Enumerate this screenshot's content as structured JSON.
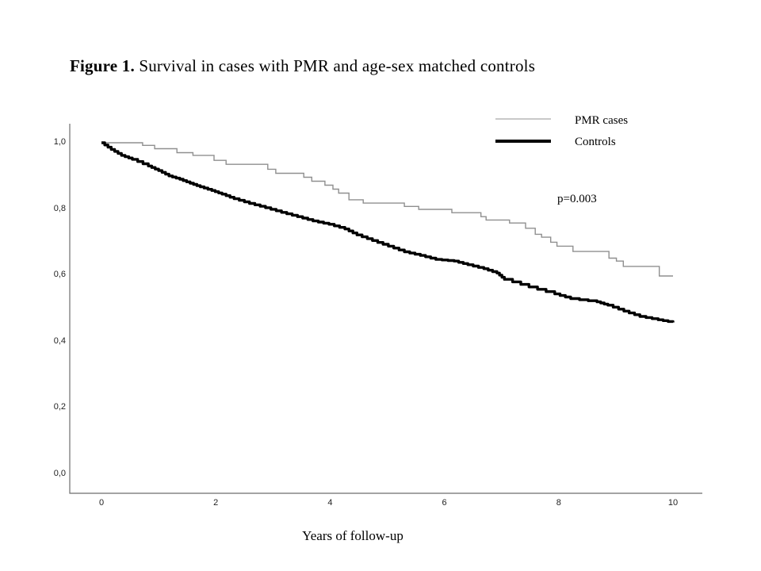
{
  "page": {
    "background": "#ffffff"
  },
  "title": {
    "label": "Figure 1.",
    "text": " Survival in cases with PMR and age-sex matched controls"
  },
  "legend": {
    "position": "top-right",
    "items": [
      {
        "label": "PMR cases",
        "swatch_color": "#c9c9c9",
        "swatch_thickness": 2
      },
      {
        "label": "Controls",
        "swatch_color": "#000000",
        "swatch_thickness": 4
      }
    ]
  },
  "annotation": {
    "p_value": "p=0.003"
  },
  "chart_data": {
    "type": "line",
    "subtype": "kaplan-meier-step-survival",
    "title": "Figure 1. Survival in cases with PMR and age-sex matched controls",
    "xlabel": "Years of follow-up",
    "ylabel": "",
    "xlim": [
      0,
      10
    ],
    "ylim": [
      0.0,
      1.0
    ],
    "grid": false,
    "legend_position": "top-right",
    "p_value": "p=0.003",
    "x_ticks": [
      {
        "value": 0,
        "label": "0"
      },
      {
        "value": 2,
        "label": "2"
      },
      {
        "value": 4,
        "label": "4"
      },
      {
        "value": 6,
        "label": "6"
      },
      {
        "value": 8,
        "label": "8"
      },
      {
        "value": 10,
        "label": "10"
      }
    ],
    "y_ticks": [
      {
        "value": 0.0,
        "label": "0,0"
      },
      {
        "value": 0.2,
        "label": "0,2"
      },
      {
        "value": 0.4,
        "label": "0,4"
      },
      {
        "value": 0.6,
        "label": "0,6"
      },
      {
        "value": 0.8,
        "label": "0,8"
      },
      {
        "value": 1.0,
        "label": "1,0"
      }
    ],
    "series": [
      {
        "name": "PMR cases",
        "color": "#8f8f8f",
        "stroke_width": 1.4,
        "substeps": 1,
        "x": [
          0,
          0.72,
          0.93,
          1.32,
          1.6,
          1.97,
          2.18,
          2.91,
          3.05,
          3.54,
          3.68,
          3.91,
          4.05,
          4.15,
          4.33,
          4.58,
          5.3,
          5.55,
          6.13,
          6.64,
          6.73,
          7.14,
          7.42,
          7.59,
          7.7,
          7.86,
          7.97,
          8.25,
          8.88,
          9.01,
          9.13,
          9.76,
          10.0
        ],
        "y": [
          1.0,
          0.992,
          0.982,
          0.97,
          0.962,
          0.947,
          0.935,
          0.92,
          0.908,
          0.896,
          0.884,
          0.872,
          0.86,
          0.848,
          0.828,
          0.818,
          0.808,
          0.799,
          0.789,
          0.777,
          0.767,
          0.758,
          0.742,
          0.724,
          0.715,
          0.7,
          0.688,
          0.672,
          0.652,
          0.643,
          0.627,
          0.598,
          0.598
        ]
      },
      {
        "name": "Controls",
        "color": "#000000",
        "stroke_width": 3.4,
        "substeps": 3,
        "x": [
          0,
          0.17,
          0.35,
          0.54,
          0.82,
          1.0,
          1.18,
          1.37,
          1.55,
          1.73,
          1.93,
          2.11,
          2.32,
          2.59,
          2.87,
          3.15,
          3.43,
          3.7,
          3.98,
          4.26,
          4.47,
          4.74,
          5.02,
          5.3,
          5.58,
          5.85,
          6.17,
          6.41,
          6.69,
          6.92,
          7.05,
          7.48,
          7.93,
          8.21,
          8.67,
          8.86,
          9.14,
          9.42,
          9.74,
          10.0
        ],
        "y": [
          1.0,
          0.98,
          0.962,
          0.95,
          0.93,
          0.916,
          0.9,
          0.89,
          0.878,
          0.867,
          0.856,
          0.845,
          0.831,
          0.817,
          0.804,
          0.79,
          0.777,
          0.764,
          0.754,
          0.74,
          0.722,
          0.705,
          0.688,
          0.671,
          0.66,
          0.648,
          0.643,
          0.632,
          0.62,
          0.607,
          0.588,
          0.565,
          0.544,
          0.53,
          0.52,
          0.51,
          0.492,
          0.476,
          0.466,
          0.458
        ]
      }
    ]
  }
}
